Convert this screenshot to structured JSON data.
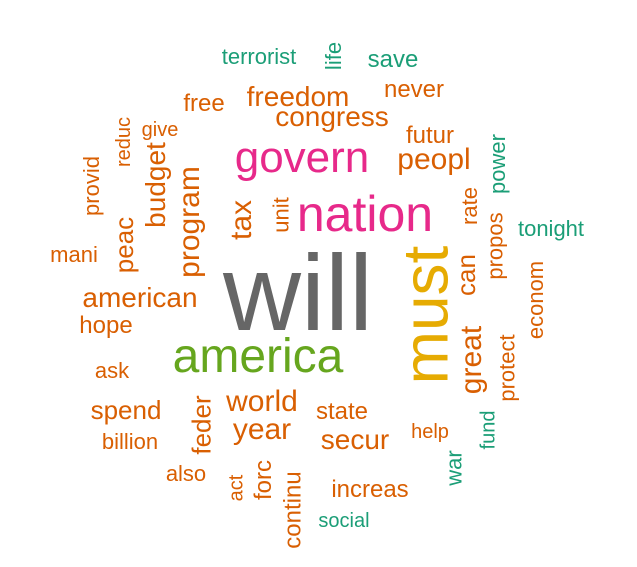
{
  "palette": {
    "teal": "#1b9e77",
    "orange": "#d95f02",
    "pink": "#e7298a",
    "green": "#66a61e",
    "gold": "#e6ab02",
    "gray": "#666666"
  },
  "words": [
    {
      "text": "will",
      "color": "gray"
    },
    {
      "text": "must",
      "color": "gold"
    },
    {
      "text": "america",
      "color": "green"
    },
    {
      "text": "nation",
      "color": "pink"
    },
    {
      "text": "govern",
      "color": "pink"
    },
    {
      "text": "freedom",
      "color": "orange"
    },
    {
      "text": "congress",
      "color": "orange"
    },
    {
      "text": "program",
      "color": "orange"
    },
    {
      "text": "american",
      "color": "orange"
    },
    {
      "text": "world",
      "color": "orange"
    },
    {
      "text": "secur",
      "color": "orange"
    },
    {
      "text": "year",
      "color": "orange"
    },
    {
      "text": "peopl",
      "color": "orange"
    },
    {
      "text": "great",
      "color": "orange"
    },
    {
      "text": "state",
      "color": "orange"
    },
    {
      "text": "budget",
      "color": "orange"
    },
    {
      "text": "tax",
      "color": "orange"
    },
    {
      "text": "can",
      "color": "orange"
    },
    {
      "text": "peac",
      "color": "orange"
    },
    {
      "text": "spend",
      "color": "orange"
    },
    {
      "text": "hope",
      "color": "orange"
    },
    {
      "text": "feder",
      "color": "orange"
    },
    {
      "text": "increas",
      "color": "orange"
    },
    {
      "text": "continu",
      "color": "orange"
    },
    {
      "text": "forc",
      "color": "orange"
    },
    {
      "text": "never",
      "color": "orange"
    },
    {
      "text": "free",
      "color": "orange"
    },
    {
      "text": "futur",
      "color": "orange"
    },
    {
      "text": "unit",
      "color": "orange"
    },
    {
      "text": "econom",
      "color": "orange"
    },
    {
      "text": "protect",
      "color": "orange"
    },
    {
      "text": "propos",
      "color": "orange"
    },
    {
      "text": "rate",
      "color": "orange"
    },
    {
      "text": "help",
      "color": "orange"
    },
    {
      "text": "ask",
      "color": "orange"
    },
    {
      "text": "billion",
      "color": "orange"
    },
    {
      "text": "mani",
      "color": "orange"
    },
    {
      "text": "provid",
      "color": "orange"
    },
    {
      "text": "reduc",
      "color": "orange"
    },
    {
      "text": "give",
      "color": "orange"
    },
    {
      "text": "also",
      "color": "orange"
    },
    {
      "text": "act",
      "color": "orange"
    },
    {
      "text": "terrorist",
      "color": "teal"
    },
    {
      "text": "life",
      "color": "teal"
    },
    {
      "text": "save",
      "color": "teal"
    },
    {
      "text": "power",
      "color": "teal"
    },
    {
      "text": "tonight",
      "color": "teal"
    },
    {
      "text": "fund",
      "color": "teal"
    },
    {
      "text": "war",
      "color": "teal"
    },
    {
      "text": "social",
      "color": "teal"
    }
  ]
}
